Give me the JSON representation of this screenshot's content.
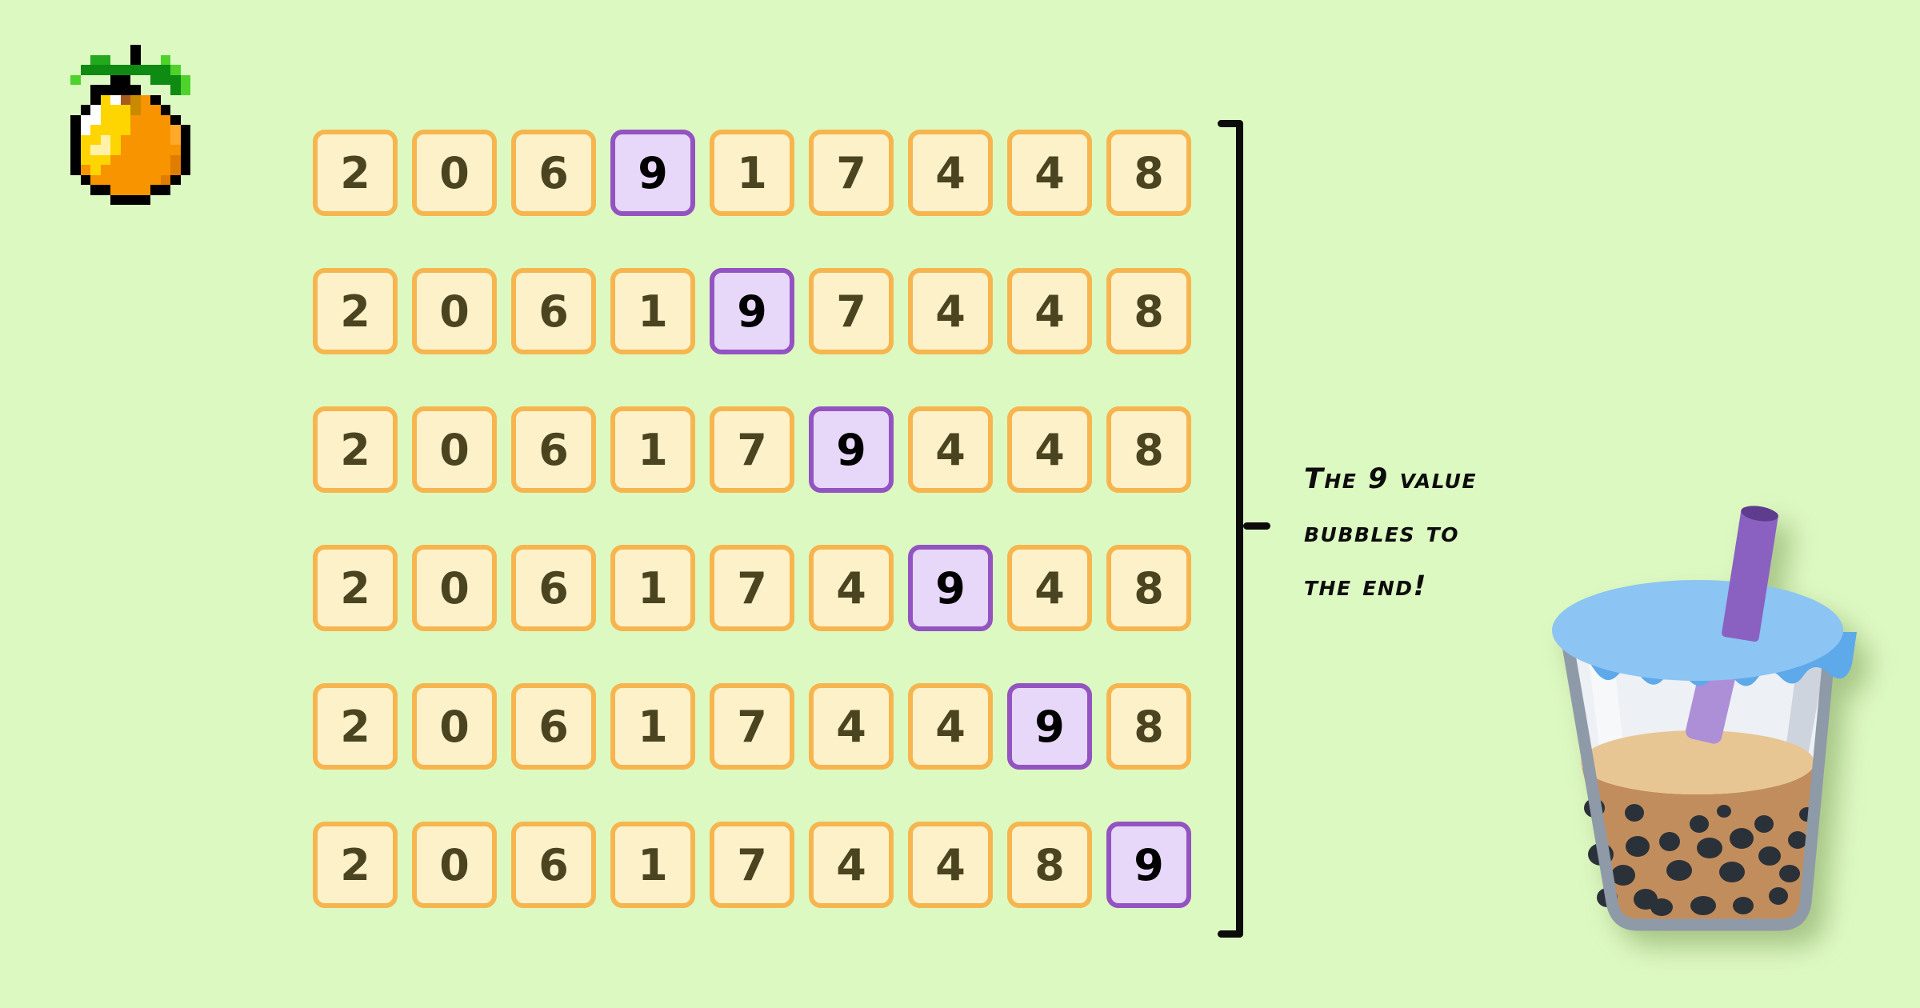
{
  "scene": {
    "background_color": "#ddf9c2",
    "description": "Bubble sort illustration showing the 9 value bubbling to the end of the array"
  },
  "caption": {
    "full_text": "The 9 value bubbles to the end!",
    "lines": [
      "The 9 value",
      "bubbles to",
      "the end!"
    ],
    "color": "#0d0d0d"
  },
  "array_rows": [
    {
      "values": [
        "2",
        "0",
        "6",
        "9",
        "1",
        "7",
        "4",
        "4",
        "8"
      ],
      "highlight_index": 3,
      "highlight_value": "9"
    },
    {
      "values": [
        "2",
        "0",
        "6",
        "1",
        "9",
        "7",
        "4",
        "4",
        "8"
      ],
      "highlight_index": 4,
      "highlight_value": "9"
    },
    {
      "values": [
        "2",
        "0",
        "6",
        "1",
        "7",
        "9",
        "4",
        "4",
        "8"
      ],
      "highlight_index": 5,
      "highlight_value": "9"
    },
    {
      "values": [
        "2",
        "0",
        "6",
        "1",
        "7",
        "4",
        "9",
        "4",
        "8"
      ],
      "highlight_index": 6,
      "highlight_value": "9"
    },
    {
      "values": [
        "2",
        "0",
        "6",
        "1",
        "7",
        "4",
        "4",
        "9",
        "8"
      ],
      "highlight_index": 7,
      "highlight_value": "9"
    },
    {
      "values": [
        "2",
        "0",
        "6",
        "1",
        "7",
        "4",
        "4",
        "8",
        "9"
      ],
      "highlight_index": 8,
      "highlight_value": "9"
    }
  ],
  "tile_style": {
    "fill": "#fdf1c9",
    "border": "#f6b54e",
    "digit_color": "#4b4420",
    "highlight_fill": "#e7d7f8",
    "highlight_border": "#9353c1",
    "highlight_digit_color": "#000000"
  },
  "bracket": {
    "color": "#0c0c0c"
  },
  "icons": {
    "pixel_orange": {
      "name": "pixel-orange-icon",
      "palette": {
        "K": "#000000",
        "D": "#0f8a12",
        "G": "#22aa1c",
        "L": "#4ed32a",
        "O": "#f79400",
        "o": "#ffa92b",
        "d": "#e07c00",
        "B": "#a85a1d",
        "b": "#c98a00",
        "Y": "#ffd500",
        "y": "#fff2a8",
        "W": "#ffffff"
      },
      "grid": [
        "......K......",
        "..GG..K..L...",
        ".DDDDDDDDDL..",
        "L...KK..DDDL.",
        "..KKKKK...DL.",
        "..KYWBbOK....",
        ".KWYYYbOOK...",
        "KWWYYYOOOOK..",
        "KWYYYYOOOOoK.",
        "KYYyYOOOOOoK.",
        "KYyyYOOOOOOK.",
        "KYYYOOOOOOdK.",
        "KOYOOOOOOOdK.",
        ".KOOOOOOOdK..",
        "..KKOOOOKK...",
        "....KKKK....."
      ]
    },
    "bubble_tea": {
      "name": "bubble-tea-icon",
      "colors": {
        "lid": "#8cc4f3",
        "lid_wave": "#5da9ea",
        "straw": "#8a61c0",
        "straw_top": "#5e3c8e",
        "straw_inner": "#ad8fd8",
        "cup_outline": "#8e9aa7",
        "glass": "#edf0f4",
        "glass_shade": "#ccd2db",
        "glass_light": "#f6f8fa",
        "tea": "#c28d5c",
        "tea_surface": "#e7c694",
        "pearl": "#2b3139"
      }
    }
  }
}
